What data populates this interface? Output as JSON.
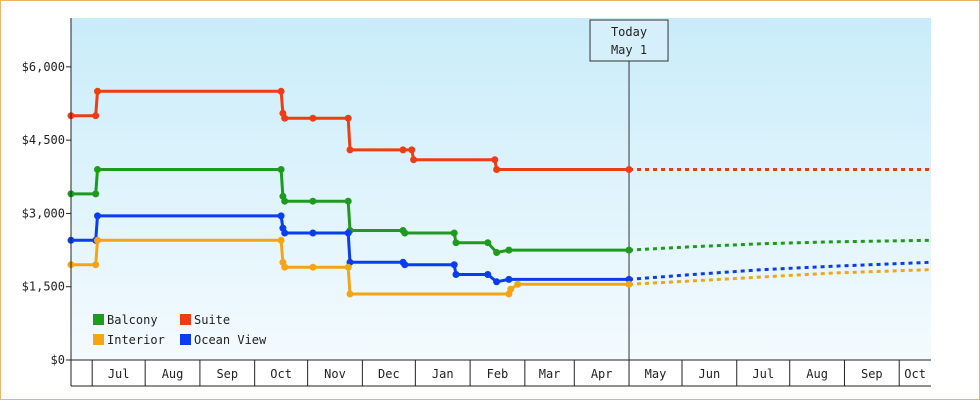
{
  "chart_data": {
    "type": "line",
    "subtype": "step",
    "y_ticks": [
      "$0",
      "$1,500",
      "$3,000",
      "$4,500",
      "$6,000"
    ],
    "y_tick_values": [
      0,
      1500,
      3000,
      4500,
      6000
    ],
    "ylim": [
      0,
      7000
    ],
    "month_labels": [
      "Jul",
      "Aug",
      "Sep",
      "Oct",
      "Nov",
      "Dec",
      "Jan",
      "Feb",
      "Mar",
      "Apr",
      "May",
      "Jun",
      "Jul",
      "Aug",
      "Sep",
      "Oct"
    ],
    "month_start_days": [
      0,
      30,
      61,
      92,
      122,
      153,
      183,
      214,
      245,
      273,
      304,
      334,
      365,
      395,
      426,
      457,
      487
    ],
    "xlim_days": [
      -12,
      475
    ],
    "today": {
      "day": 304,
      "line1": "Today",
      "line2": "May 1"
    },
    "legend": {
      "placement": "bottom-left",
      "columns": 2
    },
    "series": [
      {
        "name": "Suite",
        "color": "#ee3c14",
        "points": [
          [
            -12,
            5000
          ],
          [
            2,
            5000
          ],
          [
            3,
            5500
          ],
          [
            107,
            5500
          ],
          [
            108,
            5050
          ],
          [
            109,
            4950
          ],
          [
            125,
            4950
          ],
          [
            145,
            4950
          ],
          [
            146,
            4300
          ],
          [
            176,
            4300
          ],
          [
            181,
            4300
          ],
          [
            182,
            4100
          ],
          [
            228,
            4100
          ],
          [
            229,
            3900
          ],
          [
            260,
            3900
          ],
          [
            304,
            3900
          ]
        ],
        "forecast": [
          [
            304,
            3900
          ],
          [
            475,
            3900
          ]
        ]
      },
      {
        "name": "Balcony",
        "color": "#1e9b1e",
        "points": [
          [
            -12,
            3400
          ],
          [
            2,
            3400
          ],
          [
            3,
            3900
          ],
          [
            107,
            3900
          ],
          [
            108,
            3350
          ],
          [
            109,
            3250
          ],
          [
            125,
            3250
          ],
          [
            145,
            3250
          ],
          [
            146,
            2650
          ],
          [
            176,
            2650
          ],
          [
            177,
            2600
          ],
          [
            205,
            2600
          ],
          [
            206,
            2400
          ],
          [
            224,
            2400
          ],
          [
            229,
            2200
          ],
          [
            236,
            2250
          ],
          [
            304,
            2250
          ]
        ],
        "forecast": [
          [
            304,
            2250
          ],
          [
            340,
            2320
          ],
          [
            380,
            2380
          ],
          [
            420,
            2420
          ],
          [
            475,
            2450
          ]
        ]
      },
      {
        "name": "Ocean View",
        "color": "#0a3cf0",
        "points": [
          [
            -12,
            2450
          ],
          [
            2,
            2450
          ],
          [
            3,
            2950
          ],
          [
            107,
            2950
          ],
          [
            108,
            2700
          ],
          [
            109,
            2600
          ],
          [
            125,
            2600
          ],
          [
            145,
            2600
          ],
          [
            146,
            2000
          ],
          [
            176,
            2000
          ],
          [
            177,
            1950
          ],
          [
            205,
            1950
          ],
          [
            206,
            1750
          ],
          [
            224,
            1750
          ],
          [
            229,
            1600
          ],
          [
            236,
            1650
          ],
          [
            304,
            1650
          ]
        ],
        "forecast": [
          [
            304,
            1650
          ],
          [
            340,
            1750
          ],
          [
            380,
            1850
          ],
          [
            420,
            1920
          ],
          [
            475,
            2000
          ]
        ]
      },
      {
        "name": "Interior",
        "color": "#f5a514",
        "points": [
          [
            -12,
            1950
          ],
          [
            2,
            1950
          ],
          [
            3,
            2450
          ],
          [
            107,
            2450
          ],
          [
            108,
            2000
          ],
          [
            109,
            1900
          ],
          [
            125,
            1900
          ],
          [
            145,
            1900
          ],
          [
            146,
            1350
          ],
          [
            176,
            1350
          ],
          [
            205,
            1350
          ],
          [
            224,
            1350
          ],
          [
            236,
            1350
          ],
          [
            237,
            1450
          ],
          [
            241,
            1550
          ],
          [
            304,
            1550
          ]
        ],
        "forecast": [
          [
            304,
            1550
          ],
          [
            340,
            1620
          ],
          [
            380,
            1700
          ],
          [
            420,
            1780
          ],
          [
            475,
            1850
          ]
        ]
      }
    ],
    "markers": {
      "Suite": [
        [
          -12,
          5000
        ],
        [
          2,
          5000
        ],
        [
          3,
          5500
        ],
        [
          107,
          5500
        ],
        [
          108,
          5050
        ],
        [
          109,
          4950
        ],
        [
          125,
          4950
        ],
        [
          145,
          4950
        ],
        [
          146,
          4300
        ],
        [
          176,
          4300
        ],
        [
          181,
          4300
        ],
        [
          182,
          4100
        ],
        [
          228,
          4100
        ],
        [
          229,
          3900
        ],
        [
          304,
          3900
        ]
      ],
      "Balcony": [
        [
          -12,
          3400
        ],
        [
          2,
          3400
        ],
        [
          3,
          3900
        ],
        [
          107,
          3900
        ],
        [
          108,
          3350
        ],
        [
          109,
          3250
        ],
        [
          125,
          3250
        ],
        [
          145,
          3250
        ],
        [
          146,
          2650
        ],
        [
          176,
          2650
        ],
        [
          177,
          2600
        ],
        [
          205,
          2600
        ],
        [
          206,
          2400
        ],
        [
          224,
          2400
        ],
        [
          229,
          2200
        ],
        [
          236,
          2250
        ],
        [
          304,
          2250
        ]
      ],
      "Ocean View": [
        [
          -12,
          2450
        ],
        [
          2,
          2450
        ],
        [
          3,
          2950
        ],
        [
          107,
          2950
        ],
        [
          108,
          2700
        ],
        [
          109,
          2600
        ],
        [
          125,
          2600
        ],
        [
          145,
          2600
        ],
        [
          146,
          2000
        ],
        [
          176,
          2000
        ],
        [
          177,
          1950
        ],
        [
          205,
          1950
        ],
        [
          206,
          1750
        ],
        [
          224,
          1750
        ],
        [
          229,
          1600
        ],
        [
          236,
          1650
        ],
        [
          304,
          1650
        ]
      ],
      "Interior": [
        [
          -12,
          1950
        ],
        [
          2,
          1950
        ],
        [
          3,
          2450
        ],
        [
          107,
          2450
        ],
        [
          108,
          2000
        ],
        [
          109,
          1900
        ],
        [
          125,
          1900
        ],
        [
          145,
          1900
        ],
        [
          146,
          1350
        ],
        [
          236,
          1350
        ],
        [
          237,
          1450
        ],
        [
          241,
          1550
        ],
        [
          304,
          1550
        ]
      ]
    },
    "legend_order": [
      "Balcony",
      "Suite",
      "Interior",
      "Ocean View"
    ]
  }
}
